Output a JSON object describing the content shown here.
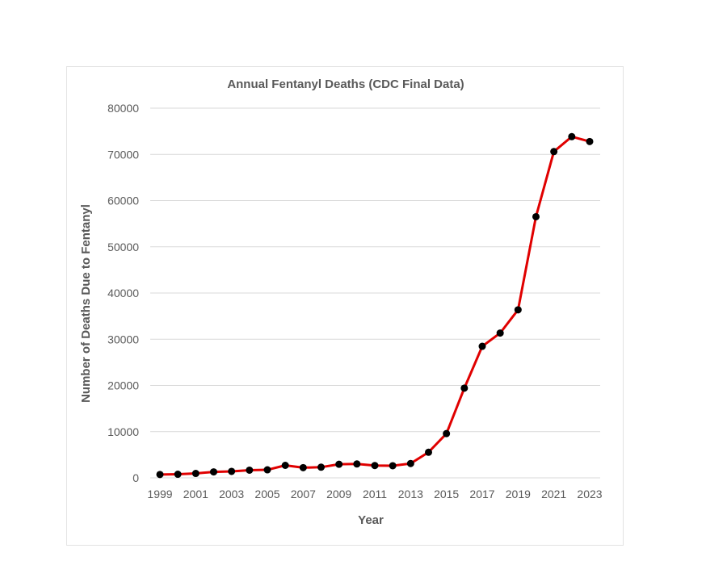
{
  "chart_data": {
    "type": "line",
    "title": "Annual Fentanyl Deaths (CDC Final Data)",
    "xlabel": "Year",
    "ylabel": "Number of Deaths Due to Fentanyl",
    "ylim": [
      0,
      80000
    ],
    "yticks": [
      0,
      10000,
      20000,
      30000,
      40000,
      50000,
      60000,
      70000,
      80000
    ],
    "xtick_labels": [
      "1999",
      "2001",
      "2003",
      "2005",
      "2007",
      "2009",
      "2011",
      "2013",
      "2015",
      "2017",
      "2019",
      "2021",
      "2023"
    ],
    "grid": true,
    "legend": "none",
    "x": [
      1999,
      2000,
      2001,
      2002,
      2003,
      2004,
      2005,
      2006,
      2007,
      2008,
      2009,
      2010,
      2011,
      2012,
      2013,
      2014,
      2015,
      2016,
      2017,
      2018,
      2019,
      2020,
      2021,
      2022,
      2023
    ],
    "series": [
      {
        "name": "Fentanyl Deaths",
        "color": "#e00000",
        "marker_color": "#000000",
        "values": [
          730,
          782,
          957,
          1295,
          1400,
          1664,
          1742,
          2707,
          2213,
          2306,
          2946,
          3007,
          2666,
          2628,
          3105,
          5544,
          9580,
          19413,
          28466,
          31335,
          36359,
          56516,
          70601,
          73838,
          72776
        ]
      }
    ]
  },
  "colors": {
    "line": "#e00000",
    "marker": "#000000",
    "text": "#595959",
    "grid": "#d9d9d9",
    "frame": "#e3e3e3"
  }
}
